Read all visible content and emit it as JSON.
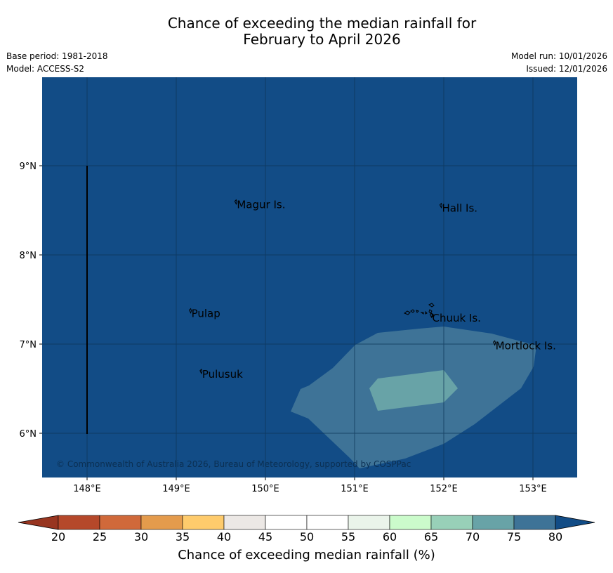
{
  "title_line1": "Chance of exceeding the median rainfall for",
  "title_line2": "February to April 2026",
  "base_period": "Base period: 1981-2018",
  "model": "Model: ACCESS-S2",
  "model_run": "Model run: 10/01/2026",
  "issued": "Issued: 12/01/2026",
  "copyright": "© Commonwealth of Australia 2026, Bureau of Meteorology, supported by COSPPac",
  "map": {
    "background_color": "#124c86",
    "lon_ticks": [
      "148°E",
      "149°E",
      "150°E",
      "151°E",
      "152°E",
      "153°E"
    ],
    "lat_ticks": [
      "9°N",
      "8°N",
      "7°N",
      "6°N"
    ],
    "places": [
      {
        "name": "Magur Is.",
        "lon": 149.68,
        "lat": 8.57
      },
      {
        "name": "Hall Is.",
        "lon": 151.98,
        "lat": 8.53
      },
      {
        "name": "Pulap",
        "lon": 149.17,
        "lat": 7.35
      },
      {
        "name": "Chuuk Is.",
        "lon": 151.87,
        "lat": 7.3
      },
      {
        "name": "Mortlock Is.",
        "lon": 152.58,
        "lat": 6.99
      },
      {
        "name": "Pulusuk",
        "lon": 149.29,
        "lat": 6.67
      }
    ]
  },
  "colorbar": {
    "ticks": [
      "20",
      "25",
      "30",
      "35",
      "40",
      "45",
      "50",
      "55",
      "60",
      "65",
      "70",
      "75",
      "80"
    ],
    "colors": [
      "#b5482a",
      "#d0693a",
      "#e49b4c",
      "#fecb6c",
      "#ece8e5",
      "#ffffff",
      "#ffffff",
      "#eaf4ea",
      "#cbfbcb",
      "#98d0b8",
      "#68a3a7",
      "#3e7397"
    ],
    "under_color": "#983520",
    "over_color": "#124c86",
    "label": "Chance of exceeding median rainfall (%)"
  }
}
